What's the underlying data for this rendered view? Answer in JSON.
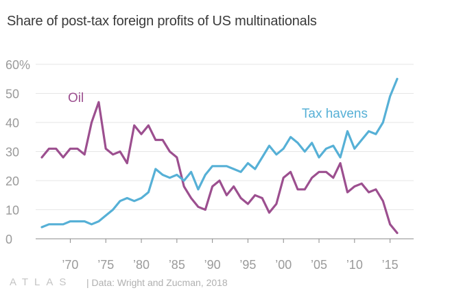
{
  "title": "Share of post-tax foreign profits of US multinationals",
  "footer": {
    "logo": "ATLAS",
    "source": "| Data: Wright and Zucman, 2018"
  },
  "chart_data": {
    "type": "line",
    "title": "Share of post-tax foreign profits of US multinationals",
    "xlabel": "",
    "ylabel": "",
    "xlim": [
      1966,
      2016
    ],
    "ylim": [
      0,
      60
    ],
    "y_ticks": [
      0,
      10,
      20,
      30,
      40,
      50,
      60
    ],
    "y_tick_labels": [
      "0",
      "10",
      "20",
      "30",
      "40",
      "50",
      "60%"
    ],
    "x_ticks": [
      1970,
      1975,
      1980,
      1985,
      1990,
      1995,
      2000,
      2005,
      2010,
      2015
    ],
    "x_tick_labels": [
      "’70",
      "’75",
      "’80",
      "’85",
      "’90",
      "’95",
      "’00",
      "’05",
      "’10",
      "’15"
    ],
    "grid": true,
    "legend": "inline labels",
    "x": [
      1966,
      1967,
      1968,
      1969,
      1970,
      1971,
      1972,
      1973,
      1974,
      1975,
      1976,
      1977,
      1978,
      1979,
      1980,
      1981,
      1982,
      1983,
      1984,
      1985,
      1986,
      1987,
      1988,
      1989,
      1990,
      1991,
      1992,
      1993,
      1994,
      1995,
      1996,
      1997,
      1998,
      1999,
      2000,
      2001,
      2002,
      2003,
      2004,
      2005,
      2006,
      2007,
      2008,
      2009,
      2010,
      2011,
      2012,
      2013,
      2014,
      2015,
      2016
    ],
    "series": [
      {
        "name": "Oil",
        "color": "#9c4f8f",
        "values": [
          28,
          31,
          31,
          28,
          31,
          31,
          29,
          40,
          47,
          31,
          29,
          30,
          26,
          39,
          36,
          39,
          34,
          34,
          30,
          28,
          18,
          14,
          11,
          10,
          18,
          20,
          15,
          18,
          14,
          12,
          15,
          14,
          9,
          12,
          21,
          23,
          17,
          17,
          21,
          23,
          23,
          21,
          26,
          16,
          18,
          19,
          16,
          17,
          13,
          5,
          2
        ]
      },
      {
        "name": "Tax havens",
        "color": "#56b0d6",
        "values": [
          4,
          5,
          5,
          5,
          6,
          6,
          6,
          5,
          6,
          8,
          10,
          13,
          14,
          13,
          14,
          16,
          24,
          22,
          21,
          22,
          20,
          23,
          17,
          22,
          25,
          25,
          25,
          24,
          23,
          26,
          24,
          28,
          32,
          29,
          31,
          35,
          33,
          30,
          33,
          28,
          31,
          32,
          28,
          37,
          31,
          34,
          37,
          36,
          40,
          49,
          55
        ]
      }
    ]
  }
}
